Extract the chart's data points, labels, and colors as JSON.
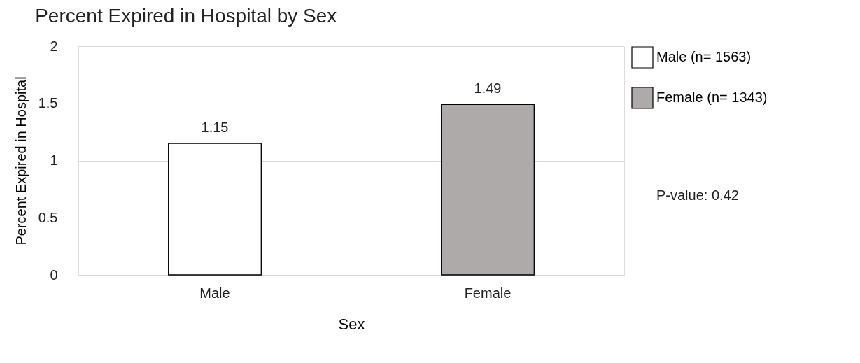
{
  "chart_data": {
    "type": "bar",
    "title": "Percent Expired in Hospital by Sex",
    "xlabel": "Sex",
    "ylabel": "Percent Expired in Hospital",
    "categories": [
      "Male",
      "Female"
    ],
    "series": [
      {
        "name": "Male (n= 1563)",
        "color": "#ffffff",
        "values": [
          1.15,
          null
        ]
      },
      {
        "name": "Female (n= 1343)",
        "color": "#aeaaaa",
        "values": [
          null,
          1.49
        ]
      }
    ],
    "ylim": [
      0,
      2
    ],
    "yticks": [
      0,
      0.5,
      1,
      1.5,
      2
    ],
    "grid": "y",
    "legend": "right",
    "data_labels": true,
    "annotations": [
      "P-value: 0.42"
    ]
  }
}
